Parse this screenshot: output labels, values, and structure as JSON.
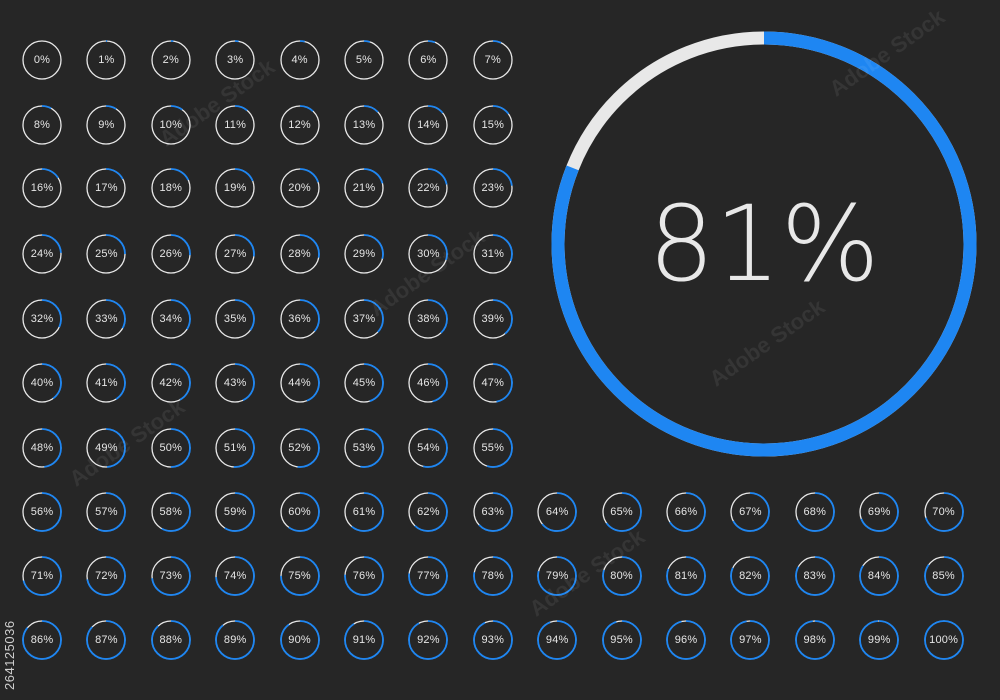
{
  "colors": {
    "background": "#262626",
    "progress": "#1e86f2",
    "track": "#e8e8e8",
    "text": "#e6e6e6"
  },
  "featured": {
    "value": 81,
    "label": "81%"
  },
  "indicators": [
    {
      "value": 0,
      "label": "0%"
    },
    {
      "value": 1,
      "label": "1%"
    },
    {
      "value": 2,
      "label": "2%"
    },
    {
      "value": 3,
      "label": "3%"
    },
    {
      "value": 4,
      "label": "4%"
    },
    {
      "value": 5,
      "label": "5%"
    },
    {
      "value": 6,
      "label": "6%"
    },
    {
      "value": 7,
      "label": "7%"
    },
    {
      "value": 8,
      "label": "8%"
    },
    {
      "value": 9,
      "label": "9%"
    },
    {
      "value": 10,
      "label": "10%"
    },
    {
      "value": 11,
      "label": "11%"
    },
    {
      "value": 12,
      "label": "12%"
    },
    {
      "value": 13,
      "label": "13%"
    },
    {
      "value": 14,
      "label": "14%"
    },
    {
      "value": 15,
      "label": "15%"
    },
    {
      "value": 16,
      "label": "16%"
    },
    {
      "value": 17,
      "label": "17%"
    },
    {
      "value": 18,
      "label": "18%"
    },
    {
      "value": 19,
      "label": "19%"
    },
    {
      "value": 20,
      "label": "20%"
    },
    {
      "value": 21,
      "label": "21%"
    },
    {
      "value": 22,
      "label": "22%"
    },
    {
      "value": 23,
      "label": "23%"
    },
    {
      "value": 24,
      "label": "24%"
    },
    {
      "value": 25,
      "label": "25%"
    },
    {
      "value": 26,
      "label": "26%"
    },
    {
      "value": 27,
      "label": "27%"
    },
    {
      "value": 28,
      "label": "28%"
    },
    {
      "value": 29,
      "label": "29%"
    },
    {
      "value": 30,
      "label": "30%"
    },
    {
      "value": 31,
      "label": "31%"
    },
    {
      "value": 32,
      "label": "32%"
    },
    {
      "value": 33,
      "label": "33%"
    },
    {
      "value": 34,
      "label": "34%"
    },
    {
      "value": 35,
      "label": "35%"
    },
    {
      "value": 36,
      "label": "36%"
    },
    {
      "value": 37,
      "label": "37%"
    },
    {
      "value": 38,
      "label": "38%"
    },
    {
      "value": 39,
      "label": "39%"
    },
    {
      "value": 40,
      "label": "40%"
    },
    {
      "value": 41,
      "label": "41%"
    },
    {
      "value": 42,
      "label": "42%"
    },
    {
      "value": 43,
      "label": "43%"
    },
    {
      "value": 44,
      "label": "44%"
    },
    {
      "value": 45,
      "label": "45%"
    },
    {
      "value": 46,
      "label": "46%"
    },
    {
      "value": 47,
      "label": "47%"
    },
    {
      "value": 48,
      "label": "48%"
    },
    {
      "value": 49,
      "label": "49%"
    },
    {
      "value": 50,
      "label": "50%"
    },
    {
      "value": 51,
      "label": "51%"
    },
    {
      "value": 52,
      "label": "52%"
    },
    {
      "value": 53,
      "label": "53%"
    },
    {
      "value": 54,
      "label": "54%"
    },
    {
      "value": 55,
      "label": "55%"
    },
    {
      "value": 56,
      "label": "56%"
    },
    {
      "value": 57,
      "label": "57%"
    },
    {
      "value": 58,
      "label": "58%"
    },
    {
      "value": 59,
      "label": "59%"
    },
    {
      "value": 60,
      "label": "60%"
    },
    {
      "value": 61,
      "label": "61%"
    },
    {
      "value": 62,
      "label": "62%"
    },
    {
      "value": 63,
      "label": "63%"
    },
    {
      "value": 64,
      "label": "64%"
    },
    {
      "value": 65,
      "label": "65%"
    },
    {
      "value": 66,
      "label": "66%"
    },
    {
      "value": 67,
      "label": "67%"
    },
    {
      "value": 68,
      "label": "68%"
    },
    {
      "value": 69,
      "label": "69%"
    },
    {
      "value": 70,
      "label": "70%"
    },
    {
      "value": 71,
      "label": "71%"
    },
    {
      "value": 72,
      "label": "72%"
    },
    {
      "value": 73,
      "label": "73%"
    },
    {
      "value": 74,
      "label": "74%"
    },
    {
      "value": 75,
      "label": "75%"
    },
    {
      "value": 76,
      "label": "76%"
    },
    {
      "value": 77,
      "label": "77%"
    },
    {
      "value": 78,
      "label": "78%"
    },
    {
      "value": 79,
      "label": "79%"
    },
    {
      "value": 80,
      "label": "80%"
    },
    {
      "value": 81,
      "label": "81%"
    },
    {
      "value": 82,
      "label": "82%"
    },
    {
      "value": 83,
      "label": "83%"
    },
    {
      "value": 84,
      "label": "84%"
    },
    {
      "value": 85,
      "label": "85%"
    },
    {
      "value": 86,
      "label": "86%"
    },
    {
      "value": 87,
      "label": "87%"
    },
    {
      "value": 88,
      "label": "88%"
    },
    {
      "value": 89,
      "label": "89%"
    },
    {
      "value": 90,
      "label": "90%"
    },
    {
      "value": 91,
      "label": "91%"
    },
    {
      "value": 92,
      "label": "92%"
    },
    {
      "value": 93,
      "label": "93%"
    },
    {
      "value": 94,
      "label": "94%"
    },
    {
      "value": 95,
      "label": "95%"
    },
    {
      "value": 96,
      "label": "96%"
    },
    {
      "value": 97,
      "label": "97%"
    },
    {
      "value": 98,
      "label": "98%"
    },
    {
      "value": 99,
      "label": "99%"
    },
    {
      "value": 100,
      "label": "100%"
    }
  ],
  "stock_id": "264125036",
  "watermark": "Adobe Stock"
}
